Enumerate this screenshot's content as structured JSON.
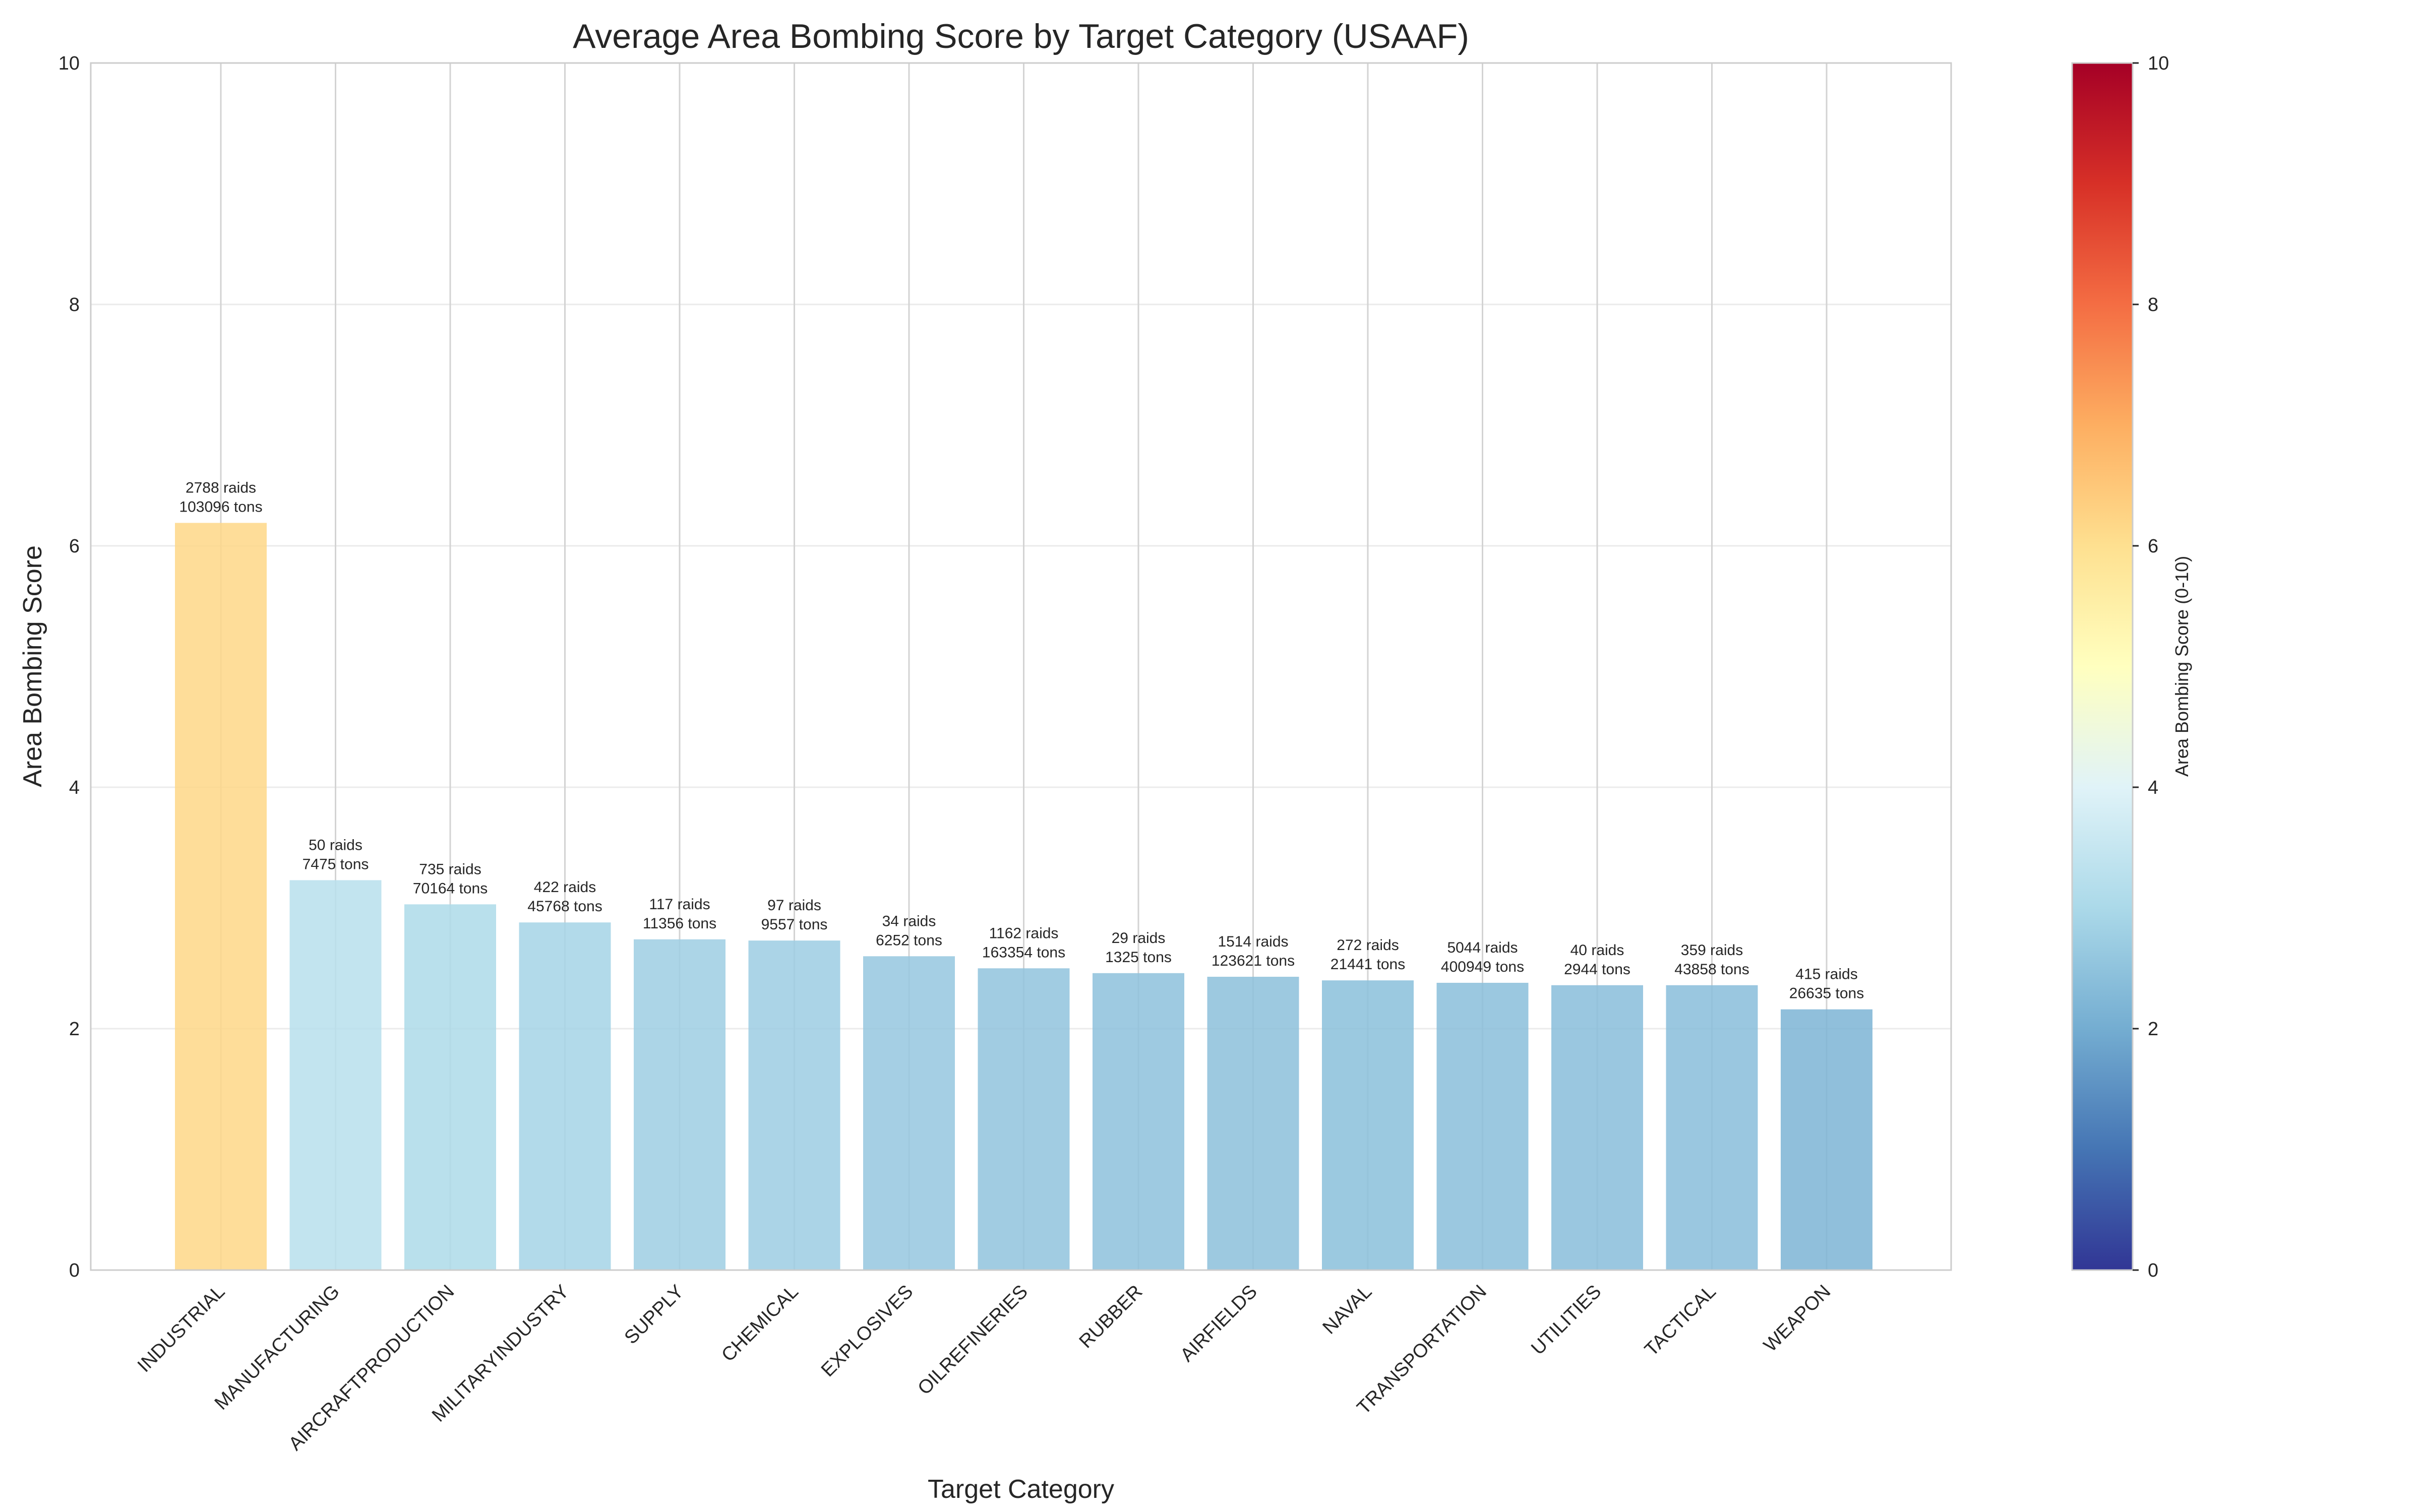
{
  "chart_data": {
    "type": "bar",
    "title": "Average Area Bombing Score by Target Category (USAAF)",
    "xlabel": "Target Category",
    "ylabel": "Area Bombing Score",
    "ylim": [
      0,
      10
    ],
    "yticks": [
      "0",
      "2",
      "4",
      "6",
      "8",
      "10"
    ],
    "grid": true,
    "categories": [
      "INDUSTRIAL",
      "MANUFACTURING",
      "AIRCRAFTPRODUCTION",
      "MILITARYINDUSTRY",
      "SUPPLY",
      "CHEMICAL",
      "EXPLOSIVES",
      "OILREFINERIES",
      "RUBBER",
      "AIRFIELDS",
      "NAVAL",
      "TRANSPORTATION",
      "UTILITIES",
      "TACTICAL",
      "WEAPON"
    ],
    "values": [
      6.19,
      3.23,
      3.03,
      2.88,
      2.74,
      2.73,
      2.6,
      2.5,
      2.46,
      2.43,
      2.4,
      2.38,
      2.36,
      2.36,
      2.16
    ],
    "annotations": [
      [
        "2788 raids",
        "103096 tons"
      ],
      [
        "50 raids",
        "7475 tons"
      ],
      [
        "735 raids",
        "70164 tons"
      ],
      [
        "422 raids",
        "45768 tons"
      ],
      [
        "117 raids",
        "11356 tons"
      ],
      [
        "97 raids",
        "9557 tons"
      ],
      [
        "34 raids",
        "6252 tons"
      ],
      [
        "1162 raids",
        "163354 tons"
      ],
      [
        "29 raids",
        "1325 tons"
      ],
      [
        "1514 raids",
        "123621 tons"
      ],
      [
        "272 raids",
        "21441 tons"
      ],
      [
        "5044 raids",
        "400949 tons"
      ],
      [
        "40 raids",
        "2944 tons"
      ],
      [
        "359 raids",
        "43858 tons"
      ],
      [
        "415 raids",
        "26635 tons"
      ]
    ],
    "colorbar": {
      "label": "Area Bombing Score (0-10)",
      "range": [
        0,
        10
      ],
      "ticks": [
        "0",
        "2",
        "4",
        "6",
        "8",
        "10"
      ],
      "colormap": "RdYlBu_r",
      "stops": [
        "#313695",
        "#4575b4",
        "#74add1",
        "#abd9e9",
        "#e0f3f8",
        "#ffffbf",
        "#fee090",
        "#fdae61",
        "#f46d43",
        "#d73027",
        "#a50026"
      ]
    }
  }
}
